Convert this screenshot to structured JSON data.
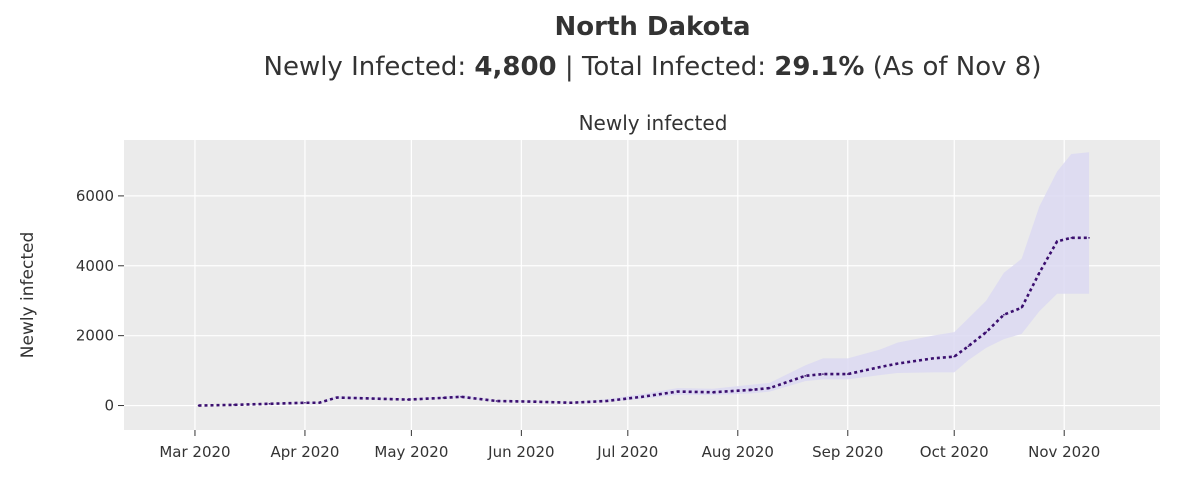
{
  "header": {
    "state": "North Dakota",
    "newly_label": "Newly Infected: ",
    "newly_value": "4,800",
    "separator": " | ",
    "total_label": "Total Infected: ",
    "total_value": "29.1%",
    "as_of": " (As of Nov 8)"
  },
  "chart_data": {
    "type": "line",
    "title": "Newly infected",
    "xlabel": "",
    "ylabel": "Newly infected",
    "grid": true,
    "ylim": [
      -700,
      7600
    ],
    "yticks": [
      0,
      2000,
      4000,
      6000
    ],
    "xlim": [
      "2020-02-10",
      "2020-11-28"
    ],
    "xticks": [
      {
        "date": "2020-03-01",
        "label": "Mar 2020"
      },
      {
        "date": "2020-04-01",
        "label": "Apr 2020"
      },
      {
        "date": "2020-05-01",
        "label": "May 2020"
      },
      {
        "date": "2020-06-01",
        "label": "Jun 2020"
      },
      {
        "date": "2020-07-01",
        "label": "Jul 2020"
      },
      {
        "date": "2020-08-01",
        "label": "Aug 2020"
      },
      {
        "date": "2020-09-01",
        "label": "Sep 2020"
      },
      {
        "date": "2020-10-01",
        "label": "Oct 2020"
      },
      {
        "date": "2020-11-01",
        "label": "Nov 2020"
      }
    ],
    "colors": {
      "line": "#3b0f6f",
      "band": "#dcd9f2",
      "plot_bg": "#ebebeb",
      "grid": "#ffffff"
    },
    "series": [
      {
        "name": "Newly infected",
        "dates": [
          "2020-03-02",
          "2020-03-12",
          "2020-03-22",
          "2020-04-01",
          "2020-04-05",
          "2020-04-10",
          "2020-04-20",
          "2020-04-30",
          "2020-05-10",
          "2020-05-15",
          "2020-05-25",
          "2020-06-05",
          "2020-06-15",
          "2020-06-25",
          "2020-07-05",
          "2020-07-15",
          "2020-07-25",
          "2020-08-05",
          "2020-08-10",
          "2020-08-20",
          "2020-08-25",
          "2020-09-01",
          "2020-09-10",
          "2020-09-15",
          "2020-09-25",
          "2020-10-01",
          "2020-10-05",
          "2020-10-10",
          "2020-10-15",
          "2020-10-20",
          "2020-10-25",
          "2020-10-30",
          "2020-11-03",
          "2020-11-08"
        ],
        "values": [
          0,
          20,
          50,
          80,
          80,
          230,
          200,
          170,
          220,
          250,
          130,
          110,
          80,
          130,
          250,
          400,
          380,
          450,
          500,
          850,
          900,
          900,
          1100,
          1200,
          1350,
          1400,
          1700,
          2100,
          2600,
          2800,
          3800,
          4700,
          4800,
          4800
        ],
        "lower": [
          0,
          10,
          35,
          60,
          60,
          190,
          170,
          150,
          190,
          210,
          110,
          95,
          70,
          100,
          190,
          310,
          300,
          350,
          400,
          700,
          750,
          750,
          870,
          930,
          950,
          950,
          1300,
          1650,
          1900,
          2050,
          2700,
          3200,
          3200,
          3200
        ],
        "upper": [
          0,
          30,
          65,
          100,
          100,
          270,
          240,
          200,
          260,
          300,
          160,
          140,
          100,
          180,
          330,
          500,
          480,
          600,
          650,
          1150,
          1350,
          1350,
          1600,
          1800,
          2000,
          2100,
          2500,
          3000,
          3800,
          4200,
          5700,
          6700,
          7200,
          7250
        ]
      }
    ]
  }
}
